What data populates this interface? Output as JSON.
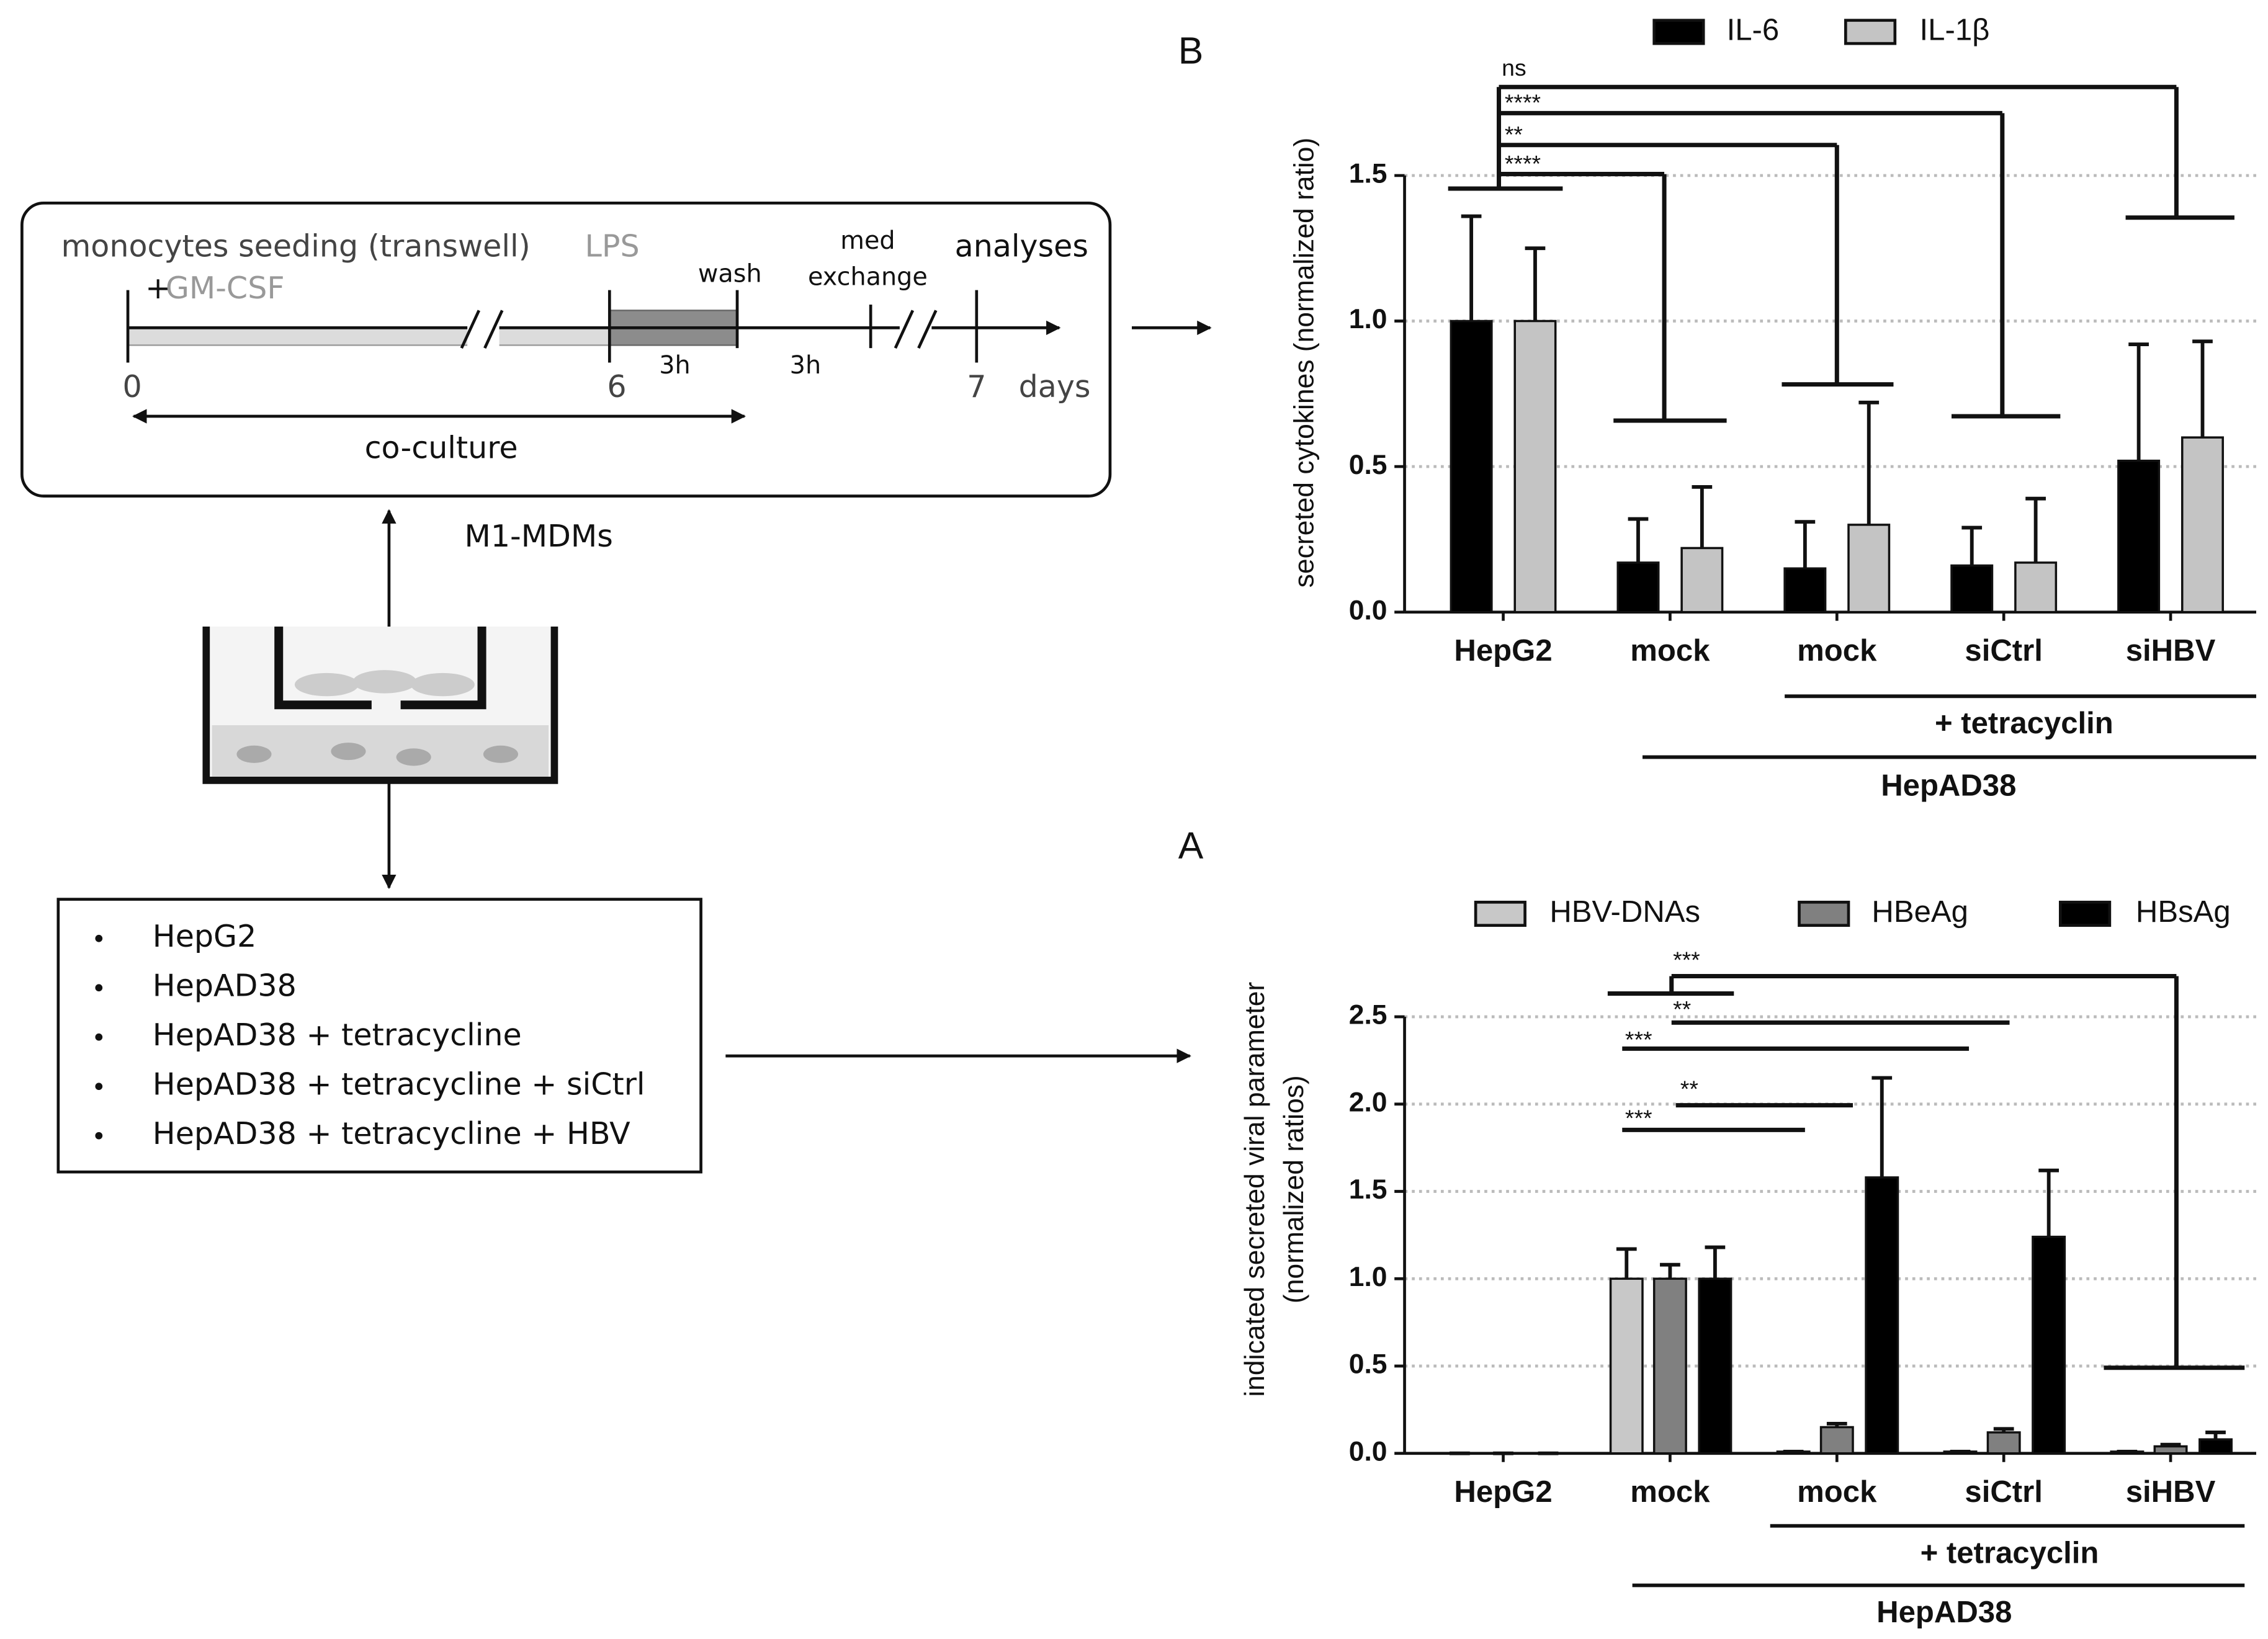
{
  "chart_data": [
    {
      "type": "bar",
      "panel": "B",
      "ylabel": [
        "secreted cytokines (normalized ratio)"
      ],
      "categories": [
        "HepG2",
        "mock",
        "mock",
        "siCtrl",
        "siHBV"
      ],
      "series": [
        {
          "name": "IL-6",
          "color": "#000000",
          "values": [
            1.0,
            0.17,
            0.15,
            0.16,
            0.52
          ],
          "errors": [
            0.36,
            0.15,
            0.16,
            0.13,
            0.4
          ]
        },
        {
          "name": "IL-1β",
          "color": "#c4c4c4",
          "values": [
            1.0,
            0.22,
            0.3,
            0.17,
            0.6
          ],
          "errors": [
            0.25,
            0.21,
            0.42,
            0.22,
            0.33
          ]
        }
      ],
      "ylim": [
        0,
        1.5
      ],
      "yticks": [
        {
          "value": 0,
          "label": "0.0"
        },
        {
          "value": 0.5,
          "label": "0.5"
        },
        {
          "value": 1,
          "label": "1.0"
        },
        {
          "value": 1.5,
          "label": "1.5"
        }
      ],
      "grid": true,
      "annotations": [
        "ns",
        "****",
        "**",
        "****"
      ],
      "group_labels": [
        "+ tetracyclin",
        "HepAD38"
      ]
    },
    {
      "type": "bar",
      "panel": "A",
      "ylabel": [
        "indicated secreted viral parameter",
        "(normalized ratios)"
      ],
      "categories": [
        "HepG2",
        "mock",
        "mock",
        "siCtrl",
        "siHBV"
      ],
      "series": [
        {
          "name": "HBV-DNAs",
          "color": "#c8c8c8",
          "values": [
            0,
            1.0,
            0.01,
            0.01,
            0.01
          ],
          "errors": [
            0,
            0.17,
            0,
            0,
            0
          ]
        },
        {
          "name": "HBeAg",
          "color": "#808080",
          "values": [
            0,
            1.0,
            0.15,
            0.12,
            0.04
          ],
          "errors": [
            0,
            0.08,
            0.02,
            0.02,
            0.01
          ]
        },
        {
          "name": "HBsAg",
          "color": "#000000",
          "values": [
            0,
            1.0,
            1.58,
            1.24,
            0.08
          ],
          "errors": [
            0,
            0.18,
            0.57,
            0.38,
            0.04
          ]
        }
      ],
      "ylim": [
        0,
        2.5
      ],
      "yticks": [
        {
          "value": 0,
          "label": "0.0"
        },
        {
          "value": 0.5,
          "label": "0.5"
        },
        {
          "value": 1,
          "label": "1.0"
        },
        {
          "value": 1.5,
          "label": "1.5"
        },
        {
          "value": 2,
          "label": "2.0"
        },
        {
          "value": 2.5,
          "label": "2.5"
        }
      ],
      "grid": true,
      "annotations": [
        "***",
        "**",
        "***",
        "**",
        "***"
      ],
      "group_labels": [
        "+ tetracyclin",
        "HepAD38"
      ]
    }
  ],
  "diagram": {
    "timeline": {
      "seeding": "monocytes seeding (transwell)",
      "plus": "+",
      "gmcsf": "GM-CSF",
      "lps": "LPS",
      "wash": "wash",
      "med": "med",
      "exchange": "exchange",
      "analyses": "analyses",
      "day0": "0",
      "day6": "6",
      "day7": "7",
      "days": "days",
      "h1": "3h",
      "h2": "3h",
      "coculture": "co-culture"
    },
    "cells": "M1-MDMs",
    "conditions": [
      "HepG2",
      "HepAD38",
      "HepAD38 + tetracycline",
      "HepAD38 + tetracycline + siCtrl",
      "HepAD38 + tetracycline + HBV"
    ]
  }
}
